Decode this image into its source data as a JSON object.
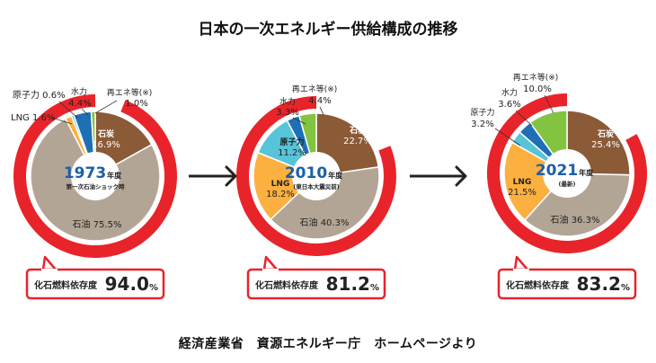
{
  "title": "日本の一次エネルギー供給構成の推移",
  "source": "経済産業省　資源エネルギー庁　ホームページより",
  "colors": {
    "coal": "#8b5a37",
    "oil": "#b3a595",
    "lng": "#fbb040",
    "nuclear": "#58c4d8",
    "hydro": "#1e6fb5",
    "renewable": "#82c341",
    "fossil_ring": "#e8242a",
    "year_text": "#1c5fa8",
    "arrow": "#222222"
  },
  "chart_data": [
    {
      "type": "pie",
      "year": "1973",
      "year_suffix": "年度",
      "note": "第一次石油ショック時",
      "fossil_label": "化石燃料依存度",
      "fossil_value": "94.0",
      "fossil_unit": "%",
      "fossil_share": 94.0,
      "slices": [
        {
          "key": "coal",
          "label": "石炭",
          "value": 16.9,
          "text": "16.9%"
        },
        {
          "key": "oil",
          "label": "石油",
          "value": 75.5,
          "text": "75.5%"
        },
        {
          "key": "lng",
          "label": "LNG",
          "value": 1.6,
          "text": "1.6%"
        },
        {
          "key": "nuclear",
          "label": "原子力",
          "value": 0.6,
          "text": "0.6%"
        },
        {
          "key": "hydro",
          "label": "水力",
          "value": 4.4,
          "text": "4.4%"
        },
        {
          "key": "renewable",
          "label": "再エネ等(※)",
          "value": 1.0,
          "text": "1.0%"
        }
      ]
    },
    {
      "type": "pie",
      "year": "2010",
      "year_suffix": "年度",
      "note": "(東日本大震災前)",
      "fossil_label": "化石燃料依存度",
      "fossil_value": "81.2",
      "fossil_unit": "%",
      "fossil_share": 81.2,
      "slices": [
        {
          "key": "coal",
          "label": "石炭",
          "value": 22.7,
          "text": "22.7%"
        },
        {
          "key": "oil",
          "label": "石油",
          "value": 40.3,
          "text": "40.3%"
        },
        {
          "key": "lng",
          "label": "LNG",
          "value": 18.2,
          "text": "18.2%"
        },
        {
          "key": "nuclear",
          "label": "原子力",
          "value": 11.2,
          "text": "11.2%"
        },
        {
          "key": "hydro",
          "label": "水力",
          "value": 3.3,
          "text": "3.3%"
        },
        {
          "key": "renewable",
          "label": "再エネ等(※)",
          "value": 4.4,
          "text": "4.4%"
        }
      ]
    },
    {
      "type": "pie",
      "year": "2021",
      "year_suffix": "年度",
      "note": "(最新)",
      "fossil_label": "化石燃料依存度",
      "fossil_value": "83.2",
      "fossil_unit": "%",
      "fossil_share": 83.2,
      "slices": [
        {
          "key": "coal",
          "label": "石炭",
          "value": 25.4,
          "text": "25.4%"
        },
        {
          "key": "oil",
          "label": "石油",
          "value": 36.3,
          "text": "36.3%"
        },
        {
          "key": "lng",
          "label": "LNG",
          "value": 21.5,
          "text": "21.5%"
        },
        {
          "key": "nuclear",
          "label": "原子力",
          "value": 3.2,
          "text": "3.2%"
        },
        {
          "key": "hydro",
          "label": "水力",
          "value": 3.6,
          "text": "3.6%"
        },
        {
          "key": "renewable",
          "label": "再エネ等(※)",
          "value": 10.0,
          "text": "10.0%"
        }
      ]
    }
  ]
}
